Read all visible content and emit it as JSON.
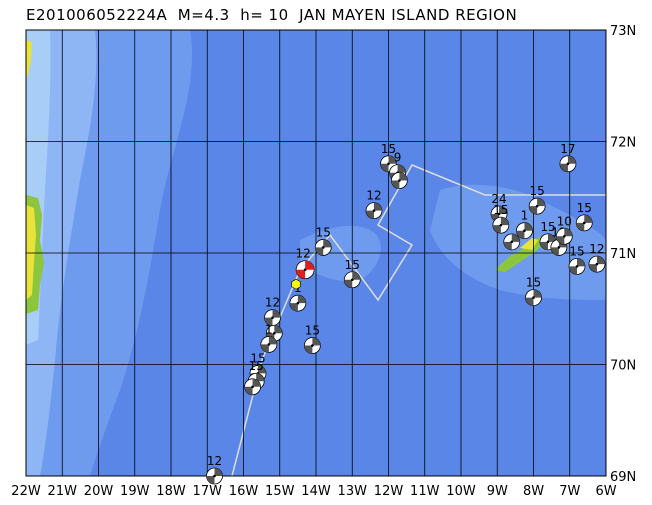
{
  "header": {
    "title": "E201006052224A  M=4.3  h= 10  JAN MAYEN ISLAND REGION"
  },
  "map": {
    "lon_range": [
      -22,
      -6
    ],
    "lat_range": [
      69,
      73
    ],
    "lon_labels": [
      "22W",
      "21W",
      "20W",
      "19W",
      "18W",
      "17W",
      "16W",
      "15W",
      "14W",
      "13W",
      "12W",
      "11W",
      "10W",
      "9W",
      "8W",
      "7W",
      "6W"
    ],
    "lat_labels": [
      "73N",
      "72N",
      "71N",
      "70N",
      "69N"
    ],
    "colors": {
      "deep": "#5a86e8",
      "mid": "#6f9bef",
      "shelf": "#8fb6f4",
      "coast": "#a8cdf6",
      "land_green": "#8cc63f",
      "land_yellow": "#e8e23a",
      "grid": "#000000",
      "plate": "#dddddd",
      "mech_dark": "#555555",
      "main_red": "#e02020",
      "epicenter": "#f5f510"
    },
    "main_event": {
      "lon": -14.3,
      "lat": 70.85,
      "depth_label": "12"
    },
    "epicenter_star": {
      "lon": -14.55,
      "lat": 70.72
    },
    "events": [
      {
        "lon": -12.0,
        "lat": 71.8,
        "label": "15"
      },
      {
        "lon": -11.75,
        "lat": 71.72,
        "label": "9"
      },
      {
        "lon": -11.7,
        "lat": 71.65,
        "label": ""
      },
      {
        "lon": -12.4,
        "lat": 71.38,
        "label": "12"
      },
      {
        "lon": -13.8,
        "lat": 71.05,
        "label": "15"
      },
      {
        "lon": -13.0,
        "lat": 70.76,
        "label": "15"
      },
      {
        "lon": -14.5,
        "lat": 70.55,
        "label": "1"
      },
      {
        "lon": -15.2,
        "lat": 70.42,
        "label": "12"
      },
      {
        "lon": -15.15,
        "lat": 70.28,
        "label": ""
      },
      {
        "lon": -15.3,
        "lat": 70.18,
        "label": "1"
      },
      {
        "lon": -14.1,
        "lat": 70.17,
        "label": "15"
      },
      {
        "lon": -15.6,
        "lat": 69.92,
        "label": "15"
      },
      {
        "lon": -15.65,
        "lat": 69.85,
        "label": "15"
      },
      {
        "lon": -15.75,
        "lat": 69.8,
        "label": ""
      },
      {
        "lon": -16.8,
        "lat": 69.0,
        "label": "12"
      },
      {
        "lon": -8.95,
        "lat": 71.35,
        "label": "24"
      },
      {
        "lon": -8.9,
        "lat": 71.25,
        "label": "15"
      },
      {
        "lon": -8.6,
        "lat": 71.1,
        "label": ""
      },
      {
        "lon": -8.25,
        "lat": 71.2,
        "label": "1"
      },
      {
        "lon": -7.9,
        "lat": 71.42,
        "label": "15"
      },
      {
        "lon": -7.6,
        "lat": 71.1,
        "label": "15"
      },
      {
        "lon": -7.3,
        "lat": 71.05,
        "label": "12"
      },
      {
        "lon": -7.15,
        "lat": 71.15,
        "label": "10"
      },
      {
        "lon": -7.05,
        "lat": 71.8,
        "label": "17"
      },
      {
        "lon": -6.6,
        "lat": 71.27,
        "label": "15"
      },
      {
        "lon": -6.8,
        "lat": 70.88,
        "label": "15"
      },
      {
        "lon": -6.25,
        "lat": 70.9,
        "label": "12"
      },
      {
        "lon": -8.0,
        "lat": 70.6,
        "label": "15"
      }
    ]
  }
}
